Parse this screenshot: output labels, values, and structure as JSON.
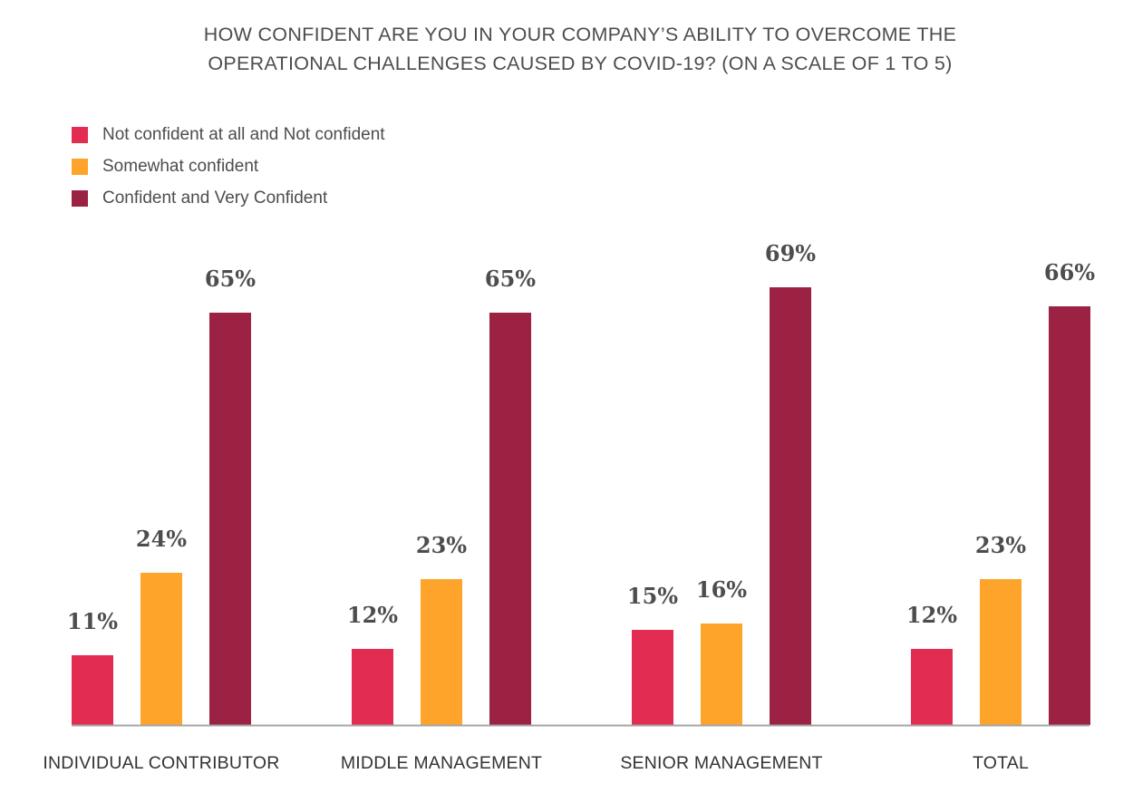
{
  "chart_data": {
    "type": "bar",
    "title": "HOW CONFIDENT ARE YOU IN YOUR COMPANY’S ABILITY TO OVERCOME THE OPERATIONAL CHALLENGES CAUSED BY COVID-19? (ON A SCALE OF 1 TO 5)",
    "title_lines": [
      "HOW CONFIDENT ARE YOU IN YOUR COMPANY’S ABILITY TO OVERCOME THE",
      "OPERATIONAL CHALLENGES CAUSED BY COVID-19? (ON A SCALE OF 1 TO 5)"
    ],
    "categories": [
      "INDIVIDUAL CONTRIBUTOR",
      "MIDDLE MANAGEMENT",
      "SENIOR MANAGEMENT",
      "TOTAL"
    ],
    "series": [
      {
        "name": "Not confident at all and Not confident",
        "color": "#e32c52",
        "values": [
          11,
          12,
          15,
          12
        ]
      },
      {
        "name": "Somewhat confident",
        "color": "#ffa42a",
        "values": [
          24,
          23,
          16,
          23
        ]
      },
      {
        "name": "Confident and Very Confident",
        "color": "#9b2242",
        "values": [
          65,
          65,
          69,
          66
        ]
      }
    ],
    "value_suffix": "%",
    "xlabel": "",
    "ylabel": "",
    "ylim": [
      0,
      100
    ],
    "grid": false,
    "y_axis_shown": false,
    "legend_position": "top-left",
    "data_labels": true,
    "baseline_color": "#a6a6a6",
    "text_color": "#4d4d4f"
  }
}
